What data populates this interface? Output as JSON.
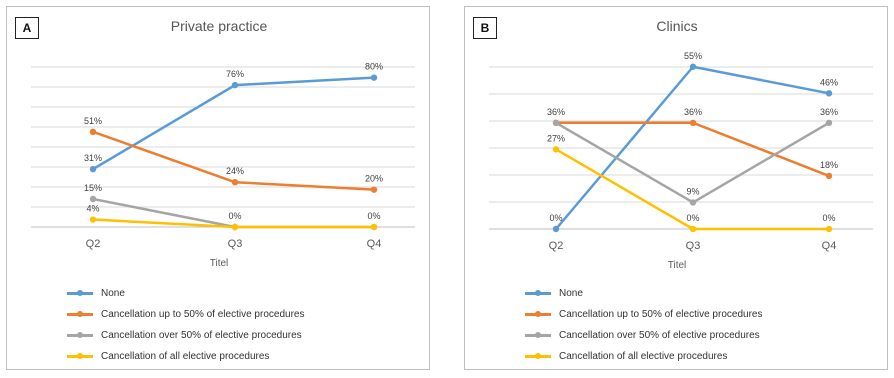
{
  "panels": [
    {
      "letter": "A",
      "xlabel": "Titel"
    },
    {
      "letter": "B",
      "xlabel": "Titel"
    }
  ],
  "legend": [
    {
      "name": "None",
      "color": "#5b9bd5"
    },
    {
      "name": "Cancellation up to 50% of elective procedures",
      "color": "#ed7d31"
    },
    {
      "name": "Cancellation over 50% of elective procedures",
      "color": "#a5a5a5"
    },
    {
      "name": "Cancellation of all elective procedures",
      "color": "#ffc000"
    }
  ],
  "chart_data": [
    {
      "type": "line",
      "title": "Private practice",
      "xlabel": "Titel",
      "categories": [
        "Q2",
        "Q3",
        "Q4"
      ],
      "ylim": [
        0,
        90
      ],
      "grid": true,
      "legend_position": "bottom",
      "series": [
        {
          "name": "None",
          "color": "#5b9bd5",
          "values": [
            31,
            76,
            80
          ],
          "labels": [
            "31%",
            "76%",
            "80%"
          ]
        },
        {
          "name": "Cancellation up to 50% of elective procedures",
          "color": "#ed7d31",
          "values": [
            51,
            24,
            20
          ],
          "labels": [
            "51%",
            "24%",
            "20%"
          ]
        },
        {
          "name": "Cancellation over 50% of elective procedures",
          "color": "#a5a5a5",
          "values": [
            15,
            0,
            0
          ],
          "labels": [
            "15%",
            "",
            ""
          ]
        },
        {
          "name": "Cancellation of all elective procedures",
          "color": "#ffc000",
          "values": [
            4,
            0,
            0
          ],
          "labels": [
            "4%",
            "0%",
            "0%"
          ]
        }
      ]
    },
    {
      "type": "line",
      "title": "Clinics",
      "xlabel": "Titel",
      "categories": [
        "Q2",
        "Q3",
        "Q4"
      ],
      "ylim": [
        0,
        60
      ],
      "grid": true,
      "legend_position": "bottom",
      "series": [
        {
          "name": "None",
          "color": "#5b9bd5",
          "values": [
            0,
            55,
            46
          ],
          "labels": [
            "0%",
            "55%",
            "46%"
          ]
        },
        {
          "name": "Cancellation up to 50% of elective procedures",
          "color": "#ed7d31",
          "values": [
            36,
            36,
            18
          ],
          "labels": [
            "36%",
            "36%",
            "18%"
          ]
        },
        {
          "name": "Cancellation over 50% of elective procedures",
          "color": "#a5a5a5",
          "values": [
            36,
            9,
            36
          ],
          "labels": [
            "",
            "9%",
            "36%"
          ]
        },
        {
          "name": "Cancellation of all elective procedures",
          "color": "#ffc000",
          "values": [
            27,
            0,
            0
          ],
          "labels": [
            "27%",
            "0%",
            "0%"
          ]
        }
      ]
    }
  ]
}
